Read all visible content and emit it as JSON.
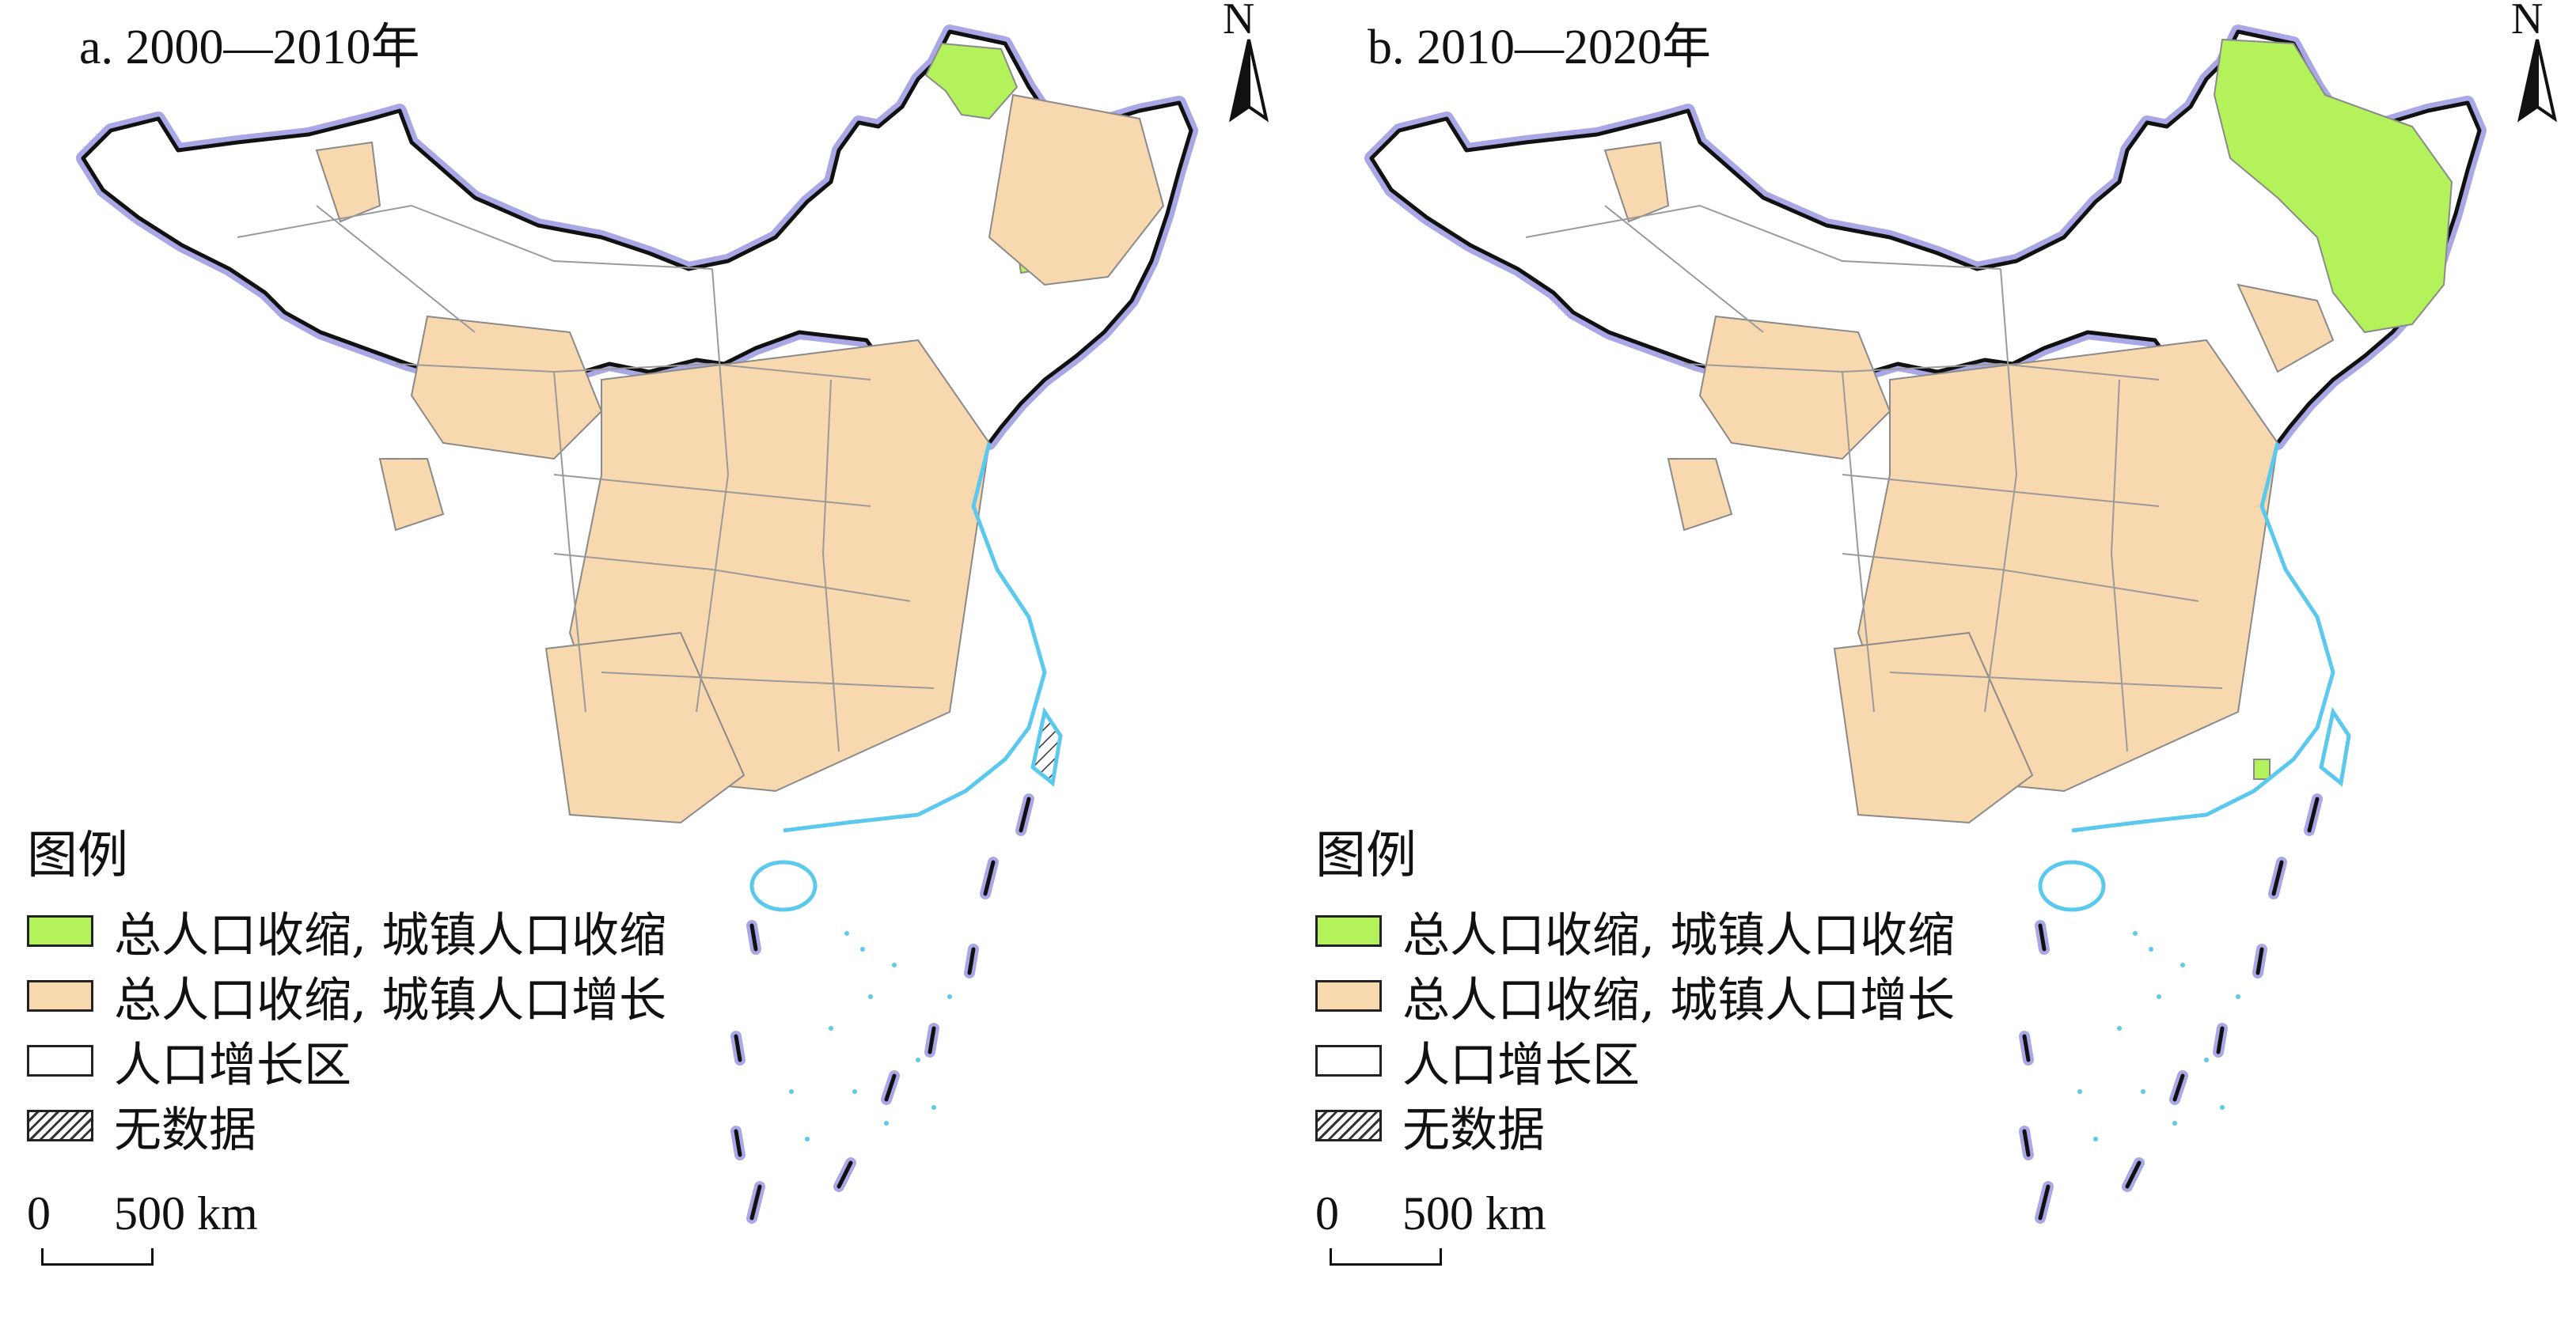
{
  "colors": {
    "shrink_both": "#b4f25b",
    "shrink_total_grow_urban": "#f8d8ae",
    "growth": "#ffffff",
    "coast": "#5bc8ee",
    "border_glow": "#a9a7e6",
    "border": "#111111",
    "internal_lines": "#9a9a9a"
  },
  "icons": {
    "north_arrow": "north-arrow-icon"
  },
  "panels": [
    {
      "title": "a. 2000—2010年",
      "north": "N",
      "legend": {
        "title": "图例",
        "items": [
          {
            "label": "总人口收缩, 城镇人口收缩",
            "swatch": "shrink_both"
          },
          {
            "label": "总人口收缩, 城镇人口增长",
            "swatch": "shrink_total_grow_urban"
          },
          {
            "label": "人口增长区",
            "swatch": "growth"
          },
          {
            "label": "无数据",
            "swatch": "nodata"
          }
        ]
      },
      "scale": {
        "zero": "0",
        "label": "500 km"
      }
    },
    {
      "title": "b. 2010—2020年",
      "north": "N",
      "legend": {
        "title": "图例",
        "items": [
          {
            "label": "总人口收缩, 城镇人口收缩",
            "swatch": "shrink_both"
          },
          {
            "label": "总人口收缩, 城镇人口增长",
            "swatch": "shrink_total_grow_urban"
          },
          {
            "label": "人口增长区",
            "swatch": "growth"
          },
          {
            "label": "无数据",
            "swatch": "nodata"
          }
        ]
      },
      "scale": {
        "zero": "0",
        "label": "500 km"
      }
    }
  ]
}
